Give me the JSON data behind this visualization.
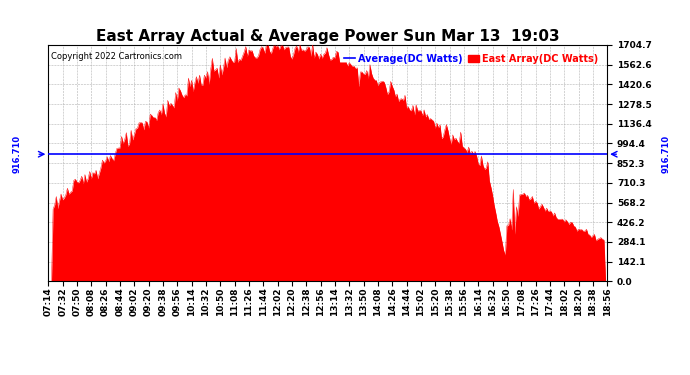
{
  "title": "East Array Actual & Average Power Sun Mar 13  19:03",
  "copyright": "Copyright 2022 Cartronics.com",
  "legend_average": "Average(DC Watts)",
  "legend_east": "East Array(DC Watts)",
  "ymin": 0.0,
  "ymax": 1704.7,
  "yticks": [
    0.0,
    142.1,
    284.1,
    426.2,
    568.2,
    710.3,
    852.3,
    994.4,
    1136.4,
    1278.5,
    1420.6,
    1562.6,
    1704.7
  ],
  "average_line_y": 916.71,
  "average_line_label": "916.710",
  "fill_color": "#ff0000",
  "line_color": "#0000ff",
  "background_color": "#ffffff",
  "grid_color": "#aaaaaa",
  "title_fontsize": 11,
  "tick_fontsize": 6.5,
  "copyright_fontsize": 6,
  "legend_fontsize": 7
}
